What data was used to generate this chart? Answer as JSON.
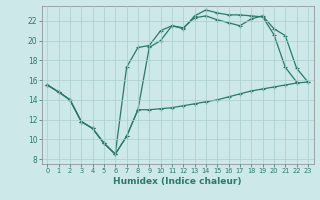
{
  "xlabel": "Humidex (Indice chaleur)",
  "bg_color": "#cce8e8",
  "line_color": "#2a7a6a",
  "grid_color": "#b0d0d0",
  "xlim": [
    -0.5,
    23.5
  ],
  "ylim": [
    7.5,
    23.5
  ],
  "yticks": [
    8,
    10,
    12,
    14,
    16,
    18,
    20,
    22
  ],
  "xticks": [
    0,
    1,
    2,
    3,
    4,
    5,
    6,
    7,
    8,
    9,
    10,
    11,
    12,
    13,
    14,
    15,
    16,
    17,
    18,
    19,
    20,
    21,
    22,
    23
  ],
  "curve1_x": [
    0,
    1,
    2,
    3,
    4,
    5,
    6,
    7,
    8,
    9,
    10,
    11,
    12,
    13,
    14,
    15,
    16,
    17,
    18,
    19,
    20,
    21,
    22,
    23
  ],
  "curve1_y": [
    15.5,
    14.8,
    14.0,
    11.8,
    11.1,
    9.6,
    8.5,
    10.3,
    13.0,
    13.0,
    13.1,
    13.2,
    13.4,
    13.6,
    13.8,
    14.0,
    14.3,
    14.6,
    14.9,
    15.1,
    15.3,
    15.5,
    15.7,
    15.8
  ],
  "curve2_x": [
    0,
    1,
    2,
    3,
    4,
    5,
    6,
    7,
    8,
    9,
    10,
    11,
    12,
    13,
    14,
    15,
    16,
    17,
    18,
    19,
    20,
    21,
    22
  ],
  "curve2_y": [
    15.5,
    14.8,
    14.0,
    11.8,
    11.1,
    9.6,
    8.5,
    17.3,
    19.3,
    19.5,
    21.0,
    21.5,
    21.2,
    22.5,
    23.1,
    22.8,
    22.6,
    22.6,
    22.5,
    22.4,
    20.6,
    17.3,
    15.8
  ],
  "curve3_x": [
    0,
    1,
    2,
    3,
    4,
    5,
    6,
    7,
    8,
    9,
    10,
    11,
    12,
    13,
    14,
    15,
    16,
    17,
    18,
    19,
    20,
    21,
    22,
    23
  ],
  "curve3_y": [
    15.5,
    14.8,
    14.0,
    11.8,
    11.1,
    9.6,
    8.5,
    10.3,
    13.0,
    19.3,
    20.0,
    21.5,
    21.3,
    22.3,
    22.5,
    22.1,
    21.8,
    21.5,
    22.2,
    22.5,
    21.2,
    20.5,
    17.2,
    15.8
  ]
}
